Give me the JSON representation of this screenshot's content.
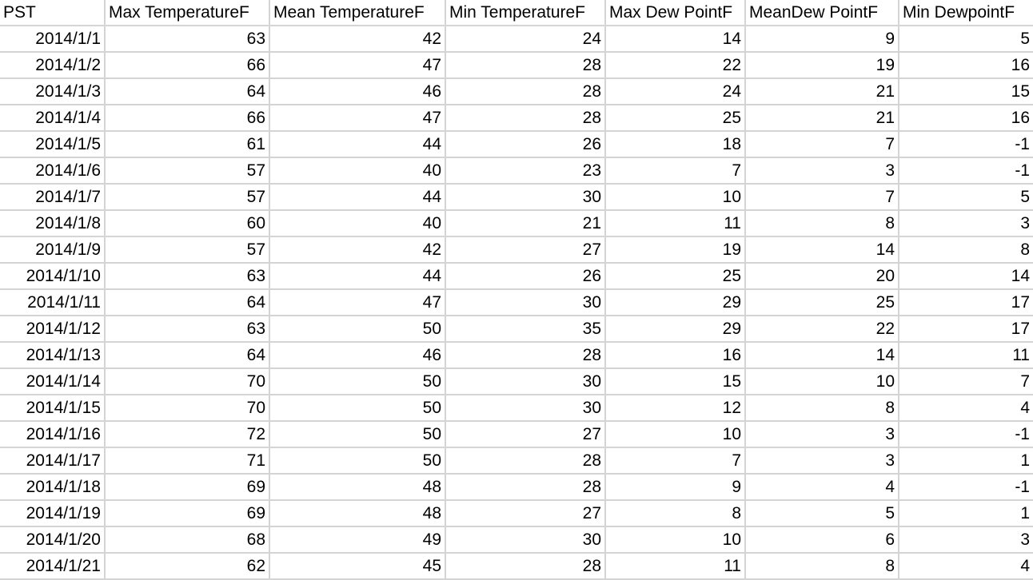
{
  "sheet": {
    "columns": [
      "PST",
      "Max TemperatureF",
      "Mean TemperatureF",
      "Min TemperatureF",
      "Max Dew PointF",
      "MeanDew PointF",
      "Min DewpointF"
    ],
    "rows": [
      [
        "2014/1/1",
        "63",
        "42",
        "24",
        "14",
        "9",
        "5"
      ],
      [
        "2014/1/2",
        "66",
        "47",
        "28",
        "22",
        "19",
        "16"
      ],
      [
        "2014/1/3",
        "64",
        "46",
        "28",
        "24",
        "21",
        "15"
      ],
      [
        "2014/1/4",
        "66",
        "47",
        "28",
        "25",
        "21",
        "16"
      ],
      [
        "2014/1/5",
        "61",
        "44",
        "26",
        "18",
        "7",
        "-1"
      ],
      [
        "2014/1/6",
        "57",
        "40",
        "23",
        "7",
        "3",
        "-1"
      ],
      [
        "2014/1/7",
        "57",
        "44",
        "30",
        "10",
        "7",
        "5"
      ],
      [
        "2014/1/8",
        "60",
        "40",
        "21",
        "11",
        "8",
        "3"
      ],
      [
        "2014/1/9",
        "57",
        "42",
        "27",
        "19",
        "14",
        "8"
      ],
      [
        "2014/1/10",
        "63",
        "44",
        "26",
        "25",
        "20",
        "14"
      ],
      [
        "2014/1/11",
        "64",
        "47",
        "30",
        "29",
        "25",
        "17"
      ],
      [
        "2014/1/12",
        "63",
        "50",
        "35",
        "29",
        "22",
        "17"
      ],
      [
        "2014/1/13",
        "64",
        "46",
        "28",
        "16",
        "14",
        "11"
      ],
      [
        "2014/1/14",
        "70",
        "50",
        "30",
        "15",
        "10",
        "7"
      ],
      [
        "2014/1/15",
        "70",
        "50",
        "30",
        "12",
        "8",
        "4"
      ],
      [
        "2014/1/16",
        "72",
        "50",
        "27",
        "10",
        "3",
        "-1"
      ],
      [
        "2014/1/17",
        "71",
        "50",
        "28",
        "7",
        "3",
        "1"
      ],
      [
        "2014/1/18",
        "69",
        "48",
        "28",
        "9",
        "4",
        "-1"
      ],
      [
        "2014/1/19",
        "69",
        "48",
        "27",
        "8",
        "5",
        "1"
      ],
      [
        "2014/1/20",
        "68",
        "49",
        "30",
        "10",
        "6",
        "3"
      ],
      [
        "2014/1/21",
        "62",
        "45",
        "28",
        "11",
        "8",
        "4"
      ]
    ]
  }
}
